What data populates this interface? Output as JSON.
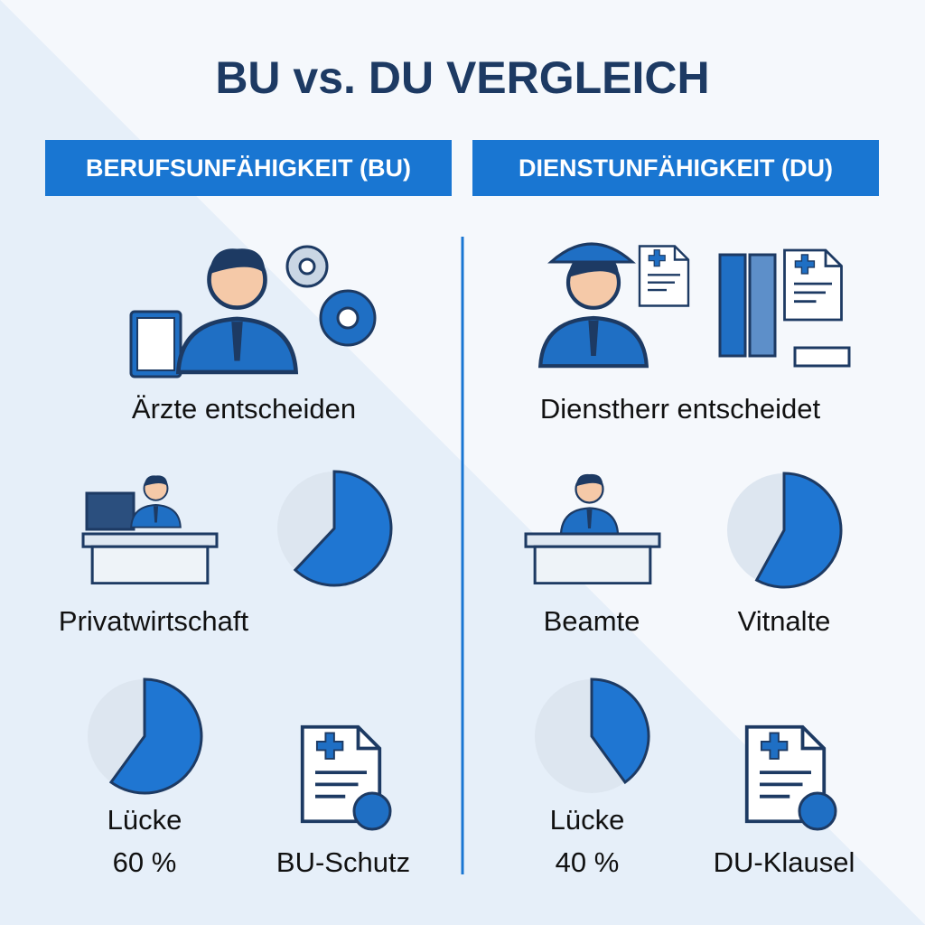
{
  "title": "BU vs. DU VERGLEICH",
  "columns": [
    {
      "header": "BERUFSUNFÄHIGKEIT (BU)",
      "decision": "Ärzte entscheiden",
      "sector": "Privatwirtschaft",
      "sector_pie": 62,
      "gap": {
        "label": "Lücke",
        "value": 60,
        "value_label": "60 %"
      },
      "protection": "BU-Schutz"
    },
    {
      "header": "DIENSTUNFÄHIGKEIT (DU)",
      "decision": "Dienstherr entscheidet",
      "sector": "Beamte",
      "sector_pie": {
        "value": 58,
        "caption": "Vitnalte"
      },
      "gap": {
        "label": "Lücke",
        "value": 40,
        "value_label": "40 %"
      },
      "protection": "DU-Klausel"
    }
  ]
}
